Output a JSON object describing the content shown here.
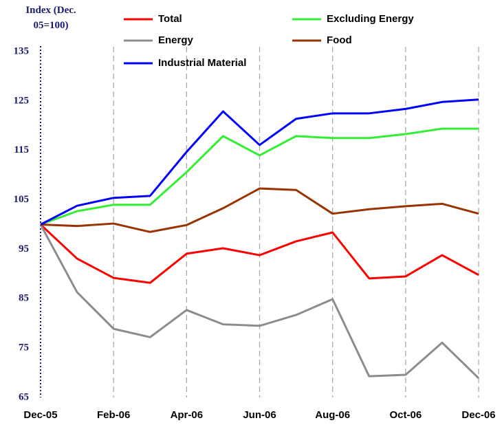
{
  "chart_data": {
    "type": "line",
    "y_label": "Index (Dec. 05=100)",
    "categories": [
      "Dec-05",
      null,
      "Feb-06",
      null,
      "Apr-06",
      null,
      "Jun-06",
      null,
      "Aug-06",
      null,
      "Oct-06",
      null,
      "Dec-06"
    ],
    "ylim": [
      65,
      135
    ],
    "yticks": [
      65,
      75,
      85,
      95,
      105,
      115,
      125,
      135
    ],
    "grid": true,
    "series": [
      {
        "name": "Total",
        "color": "#ff0000",
        "values": [
          100,
          93.1,
          89.2,
          88.2,
          94.1,
          95.2,
          93.8,
          96.6,
          98.4,
          89.1,
          89.5,
          93.8,
          89.8
        ]
      },
      {
        "name": "Excluding Energy",
        "color": "#33ee33",
        "values": [
          100,
          102.7,
          104.0,
          104.0,
          110.6,
          117.9,
          114.0,
          117.9,
          117.5,
          117.5,
          118.3,
          119.4,
          119.4
        ]
      },
      {
        "name": "Energy",
        "color": "#8c8c8c",
        "values": [
          100,
          86.3,
          78.9,
          77.2,
          82.7,
          79.8,
          79.5,
          81.7,
          84.9,
          69.3,
          69.6,
          76.1,
          68.9
        ]
      },
      {
        "name": "Food",
        "color": "#993300",
        "values": [
          100,
          99.7,
          100.2,
          98.5,
          99.9,
          103.3,
          107.3,
          107.0,
          102.2,
          103.1,
          103.7,
          104.2,
          102.2
        ]
      },
      {
        "name": "Industrial Material",
        "color": "#0000ff",
        "values": [
          100,
          103.8,
          105.4,
          105.8,
          114.7,
          122.9,
          116.1,
          121.4,
          122.5,
          122.5,
          123.4,
          124.8,
          125.3
        ]
      }
    ]
  }
}
